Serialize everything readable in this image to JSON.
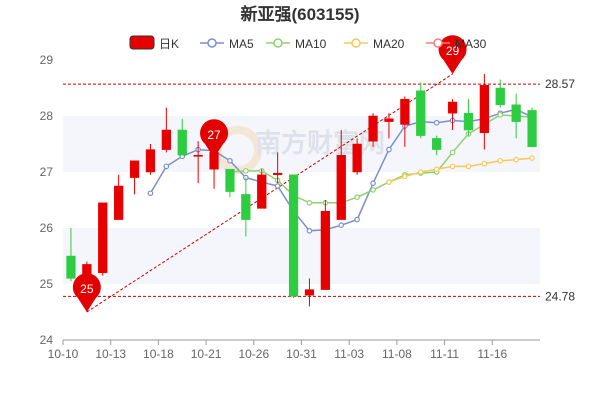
{
  "chart_data": {
    "type": "candlestick",
    "title": "新亚强(603155)",
    "legend": {
      "placement": "top-center",
      "items": [
        {
          "name": "日K",
          "kind": "candle",
          "color": "#e60000"
        },
        {
          "name": "MA5",
          "kind": "line",
          "color": "#7b8fd0"
        },
        {
          "name": "MA10",
          "kind": "line",
          "color": "#90d070"
        },
        {
          "name": "MA20",
          "kind": "line",
          "color": "#f5c95a"
        },
        {
          "name": "MA30",
          "kind": "line",
          "color": "#f08080"
        }
      ]
    },
    "ylim": [
      24,
      29
    ],
    "yticks": [
      24,
      25,
      26,
      27,
      28,
      29
    ],
    "grid": "horizontal-bands",
    "x_tick_labels": [
      {
        "index": 0,
        "label": "10-10"
      },
      {
        "index": 3,
        "label": "10-13"
      },
      {
        "index": 6,
        "label": "10-18"
      },
      {
        "index": 9,
        "label": "10-21"
      },
      {
        "index": 12,
        "label": "10-26"
      },
      {
        "index": 15,
        "label": "10-31"
      },
      {
        "index": 18,
        "label": "11-03"
      },
      {
        "index": 21,
        "label": "11-08"
      },
      {
        "index": 24,
        "label": "11-11"
      },
      {
        "index": 27,
        "label": "11-16"
      }
    ],
    "candles": [
      {
        "o": 25.5,
        "h": 26.0,
        "l": 25.05,
        "c": 25.1
      },
      {
        "o": 25.1,
        "h": 25.4,
        "l": 24.5,
        "c": 25.35
      },
      {
        "o": 25.2,
        "h": 26.45,
        "l": 25.15,
        "c": 26.45
      },
      {
        "o": 26.15,
        "h": 26.95,
        "l": 26.15,
        "c": 26.75
      },
      {
        "o": 26.9,
        "h": 27.2,
        "l": 26.6,
        "c": 27.2
      },
      {
        "o": 27.0,
        "h": 27.5,
        "l": 26.95,
        "c": 27.4
      },
      {
        "o": 27.4,
        "h": 28.15,
        "l": 27.35,
        "c": 27.75
      },
      {
        "o": 27.75,
        "h": 27.95,
        "l": 27.3,
        "c": 27.3
      },
      {
        "o": 27.3,
        "h": 27.55,
        "l": 26.8,
        "c": 27.3
      },
      {
        "o": 27.05,
        "h": 27.5,
        "l": 26.7,
        "c": 27.35
      },
      {
        "o": 27.05,
        "h": 27.05,
        "l": 26.55,
        "c": 26.65
      },
      {
        "o": 26.6,
        "h": 26.9,
        "l": 25.85,
        "c": 26.15
      },
      {
        "o": 26.35,
        "h": 27.05,
        "l": 26.35,
        "c": 26.95
      },
      {
        "o": 26.95,
        "h": 27.35,
        "l": 26.8,
        "c": 26.98
      },
      {
        "o": 26.95,
        "h": 26.95,
        "l": 24.75,
        "c": 24.78
      },
      {
        "o": 24.8,
        "h": 25.1,
        "l": 24.6,
        "c": 24.9
      },
      {
        "o": 24.9,
        "h": 26.5,
        "l": 24.9,
        "c": 26.3
      },
      {
        "o": 26.15,
        "h": 27.75,
        "l": 26.15,
        "c": 27.3
      },
      {
        "o": 27.0,
        "h": 27.6,
        "l": 26.95,
        "c": 27.5
      },
      {
        "o": 27.55,
        "h": 28.05,
        "l": 27.45,
        "c": 28.0
      },
      {
        "o": 27.9,
        "h": 28.05,
        "l": 27.6,
        "c": 27.95
      },
      {
        "o": 27.85,
        "h": 28.35,
        "l": 27.45,
        "c": 28.3
      },
      {
        "o": 28.45,
        "h": 28.6,
        "l": 27.6,
        "c": 27.65
      },
      {
        "o": 27.6,
        "h": 27.65,
        "l": 27.3,
        "c": 27.4
      },
      {
        "o": 28.05,
        "h": 28.3,
        "l": 27.75,
        "c": 28.25
      },
      {
        "o": 28.05,
        "h": 28.3,
        "l": 27.65,
        "c": 27.75
      },
      {
        "o": 27.7,
        "h": 28.75,
        "l": 27.4,
        "c": 28.55
      },
      {
        "o": 28.5,
        "h": 28.65,
        "l": 28.15,
        "c": 28.2
      },
      {
        "o": 28.2,
        "h": 28.4,
        "l": 27.6,
        "c": 27.9
      },
      {
        "o": 28.1,
        "h": 28.15,
        "l": 27.45,
        "c": 27.45
      }
    ],
    "series": [
      {
        "name": "MA5",
        "color": "#7b8fd0",
        "start": 5,
        "values": [
          26.62,
          27.1,
          27.28,
          27.4,
          27.38,
          27.2,
          26.9,
          26.82,
          26.75,
          26.3,
          25.95,
          25.97,
          26.05,
          26.15,
          26.8,
          27.4,
          27.82,
          27.9,
          27.88,
          27.92,
          27.9,
          27.95,
          28.05,
          28.12,
          27.98
        ]
      },
      {
        "name": "MA10",
        "color": "#90d070",
        "start": 10,
        "values": [
          27.0,
          27.02,
          27.02,
          26.85,
          26.58,
          26.45,
          26.45,
          26.45,
          26.55,
          26.68,
          26.82,
          26.95,
          26.98,
          27.0,
          27.35,
          27.68,
          27.85,
          28.02,
          28.0,
          27.98
        ]
      },
      {
        "name": "MA20",
        "color": "#f5c95a",
        "start": 20,
        "values": [
          26.82,
          26.92,
          27.0,
          27.05,
          27.1,
          27.1,
          27.15,
          27.2,
          27.22,
          27.25
        ]
      }
    ],
    "reference_lines": [
      {
        "value": 28.57,
        "label": "28.57"
      },
      {
        "value": 24.78,
        "label": "24.78"
      }
    ],
    "markers": [
      {
        "index": 1,
        "value": 24.5,
        "label": "25"
      },
      {
        "index": 9,
        "value": 27.25,
        "label": "27"
      },
      {
        "index": 24,
        "value": 28.75,
        "label": "29"
      }
    ],
    "trendline": {
      "from": {
        "index": 1,
        "value": 24.5
      },
      "to": {
        "index": 24,
        "value": 28.75
      }
    },
    "colors": {
      "up": "#e60000",
      "down": "#2ecc40",
      "grid_band": "#f4f6fb",
      "marker": "#e30000",
      "ref_line": "#cc0000"
    }
  }
}
